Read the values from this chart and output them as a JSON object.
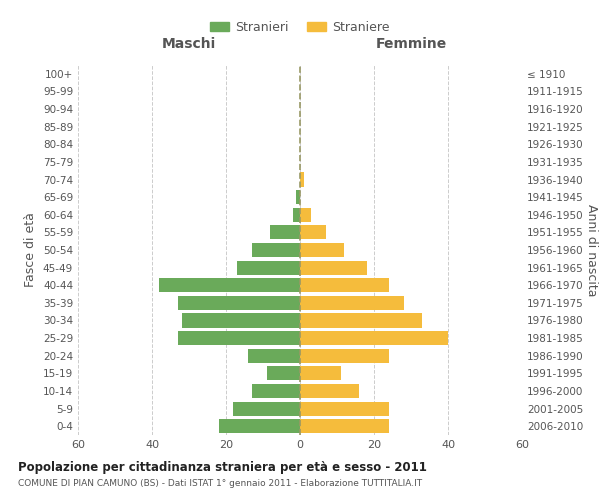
{
  "age_groups": [
    "0-4",
    "5-9",
    "10-14",
    "15-19",
    "20-24",
    "25-29",
    "30-34",
    "35-39",
    "40-44",
    "45-49",
    "50-54",
    "55-59",
    "60-64",
    "65-69",
    "70-74",
    "75-79",
    "80-84",
    "85-89",
    "90-94",
    "95-99",
    "100+"
  ],
  "birth_years": [
    "2006-2010",
    "2001-2005",
    "1996-2000",
    "1991-1995",
    "1986-1990",
    "1981-1985",
    "1976-1980",
    "1971-1975",
    "1966-1970",
    "1961-1965",
    "1956-1960",
    "1951-1955",
    "1946-1950",
    "1941-1945",
    "1936-1940",
    "1931-1935",
    "1926-1930",
    "1921-1925",
    "1916-1920",
    "1911-1915",
    "≤ 1910"
  ],
  "maschi": [
    22,
    18,
    13,
    9,
    14,
    33,
    32,
    33,
    38,
    17,
    13,
    8,
    2,
    1,
    0,
    0,
    0,
    0,
    0,
    0,
    0
  ],
  "femmine": [
    24,
    24,
    16,
    11,
    24,
    40,
    33,
    28,
    24,
    18,
    12,
    7,
    3,
    0,
    1,
    0,
    0,
    0,
    0,
    0,
    0
  ],
  "maschi_color": "#6aaa5a",
  "femmine_color": "#f5bc3c",
  "bar_height": 0.8,
  "xlim": 60,
  "title": "Popolazione per cittadinanza straniera per età e sesso - 2011",
  "subtitle": "COMUNE DI PIAN CAMUNO (BS) - Dati ISTAT 1° gennaio 2011 - Elaborazione TUTTITALIA.IT",
  "ylabel_left": "Fasce di età",
  "ylabel_right": "Anni di nascita",
  "xlabel_maschi": "Maschi",
  "xlabel_femmine": "Femmine",
  "legend_maschi": "Stranieri",
  "legend_femmine": "Straniere",
  "bg_color": "#ffffff",
  "grid_color": "#cccccc",
  "tick_color": "#888888",
  "vline_color": "#999966",
  "font_color": "#555555"
}
